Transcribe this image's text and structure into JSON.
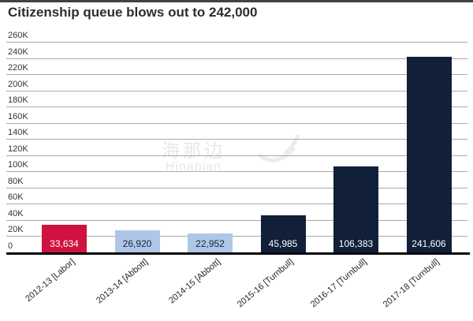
{
  "title": "Citizenship queue blows out to 242,000",
  "watermark": {
    "cn": "海那边",
    "en": "Hinabian"
  },
  "colors": {
    "labor_red": "#d0123e",
    "abbott_light_blue": "#aec7e8",
    "turnbull_navy": "#121f38",
    "gridline_gray": "#a9a9a9",
    "axis_black": "#060606"
  },
  "chart_data": {
    "type": "bar",
    "title": "Citizenship queue blows out to 242,000",
    "categories": [
      "2012-13 [Labor]",
      "2013-14 [Abbott]",
      "2014-15 [Abbott]",
      "2015-16 [Turnbull]",
      "2016-17 [Turnbull]",
      "2017-18 [Turnbull]"
    ],
    "values": [
      33634,
      26920,
      22952,
      45985,
      106383,
      241606
    ],
    "value_labels": [
      "33,634",
      "26,920",
      "22,952",
      "45,985",
      "106,383",
      "241,606"
    ],
    "bar_colors": [
      "#d0123e",
      "#aec7e8",
      "#aec7e8",
      "#121f38",
      "#121f38",
      "#121f38"
    ],
    "value_label_colors": [
      "#ffffff",
      "#15213a",
      "#15213a",
      "#ffffff",
      "#ffffff",
      "#ffffff"
    ],
    "xlabel": "",
    "ylabel": "",
    "ylim": [
      0,
      260000
    ],
    "ytick_step": 20000,
    "ytick_labels": [
      "0",
      "20K",
      "40K",
      "60K",
      "80K",
      "100K",
      "120K",
      "140K",
      "160K",
      "180K",
      "200K",
      "220K",
      "240K",
      "260K"
    ],
    "grid": true,
    "legend": false,
    "value_labels_position": "inside-bottom",
    "category_labels_rotation_deg": -40
  }
}
